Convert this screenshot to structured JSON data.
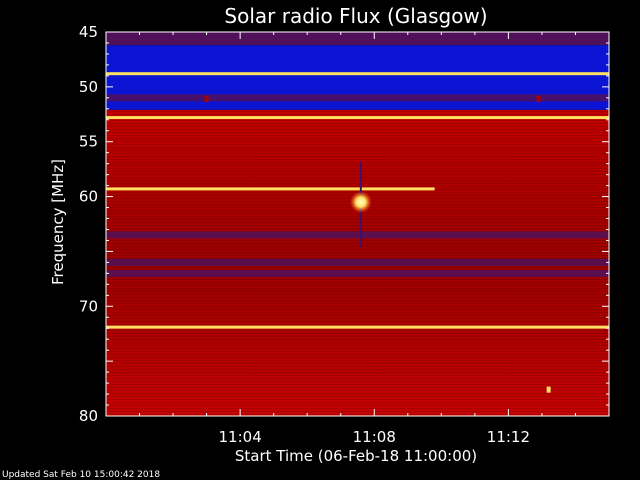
{
  "chart_data": {
    "type": "heatmap",
    "title": "Solar radio Flux (Glasgow)",
    "ylabel": "Frequency [MHz]",
    "xlabel": "Start Time (06-Feb-18 11:00:00)",
    "x_unit": "minutes after 11:00",
    "xlim": [
      0,
      15
    ],
    "ylim": [
      45,
      80
    ],
    "y_ticks": [
      {
        "value": 45,
        "label": "45"
      },
      {
        "value": 50,
        "label": "50"
      },
      {
        "value": 55,
        "label": "55"
      },
      {
        "value": 60,
        "label": "60"
      },
      {
        "value": 70,
        "label": "70"
      },
      {
        "value": 80,
        "label": "80"
      }
    ],
    "x_ticks": [
      {
        "value": 4,
        "label": "11:04"
      },
      {
        "value": 8,
        "label": "11:08"
      },
      {
        "value": 12,
        "label": "11:12"
      }
    ],
    "colors": {
      "background": "#000000",
      "low": "#0a14d2",
      "mid": "#b00000",
      "high": "#ff3010",
      "peak": "#ffe060",
      "dark_band": "#50105a",
      "frame": "#ffffff"
    },
    "regions": [
      {
        "y0": 45,
        "y1": 46.2,
        "level": "dark"
      },
      {
        "y0": 46.2,
        "y1": 52.1,
        "level": "low"
      },
      {
        "y0": 52.1,
        "y1": 80,
        "level": "mid"
      }
    ],
    "horizontal_bands": [
      {
        "y": 48.8,
        "level": "peak",
        "x0": 0,
        "x1": 15
      },
      {
        "y": 51.0,
        "level": "dark",
        "x0": 0,
        "x1": 15
      },
      {
        "y": 52.8,
        "level": "peak",
        "x0": 0,
        "x1": 15
      },
      {
        "y": 59.3,
        "level": "peak",
        "x0": 0,
        "x1": 9.8
      },
      {
        "y": 63.5,
        "level": "dark",
        "x0": 0,
        "x1": 15
      },
      {
        "y": 66.0,
        "level": "dark",
        "x0": 0,
        "x1": 15
      },
      {
        "y": 67.0,
        "level": "dark",
        "x0": 0,
        "x1": 15
      },
      {
        "y": 71.9,
        "level": "peak",
        "x0": 0,
        "x1": 15
      }
    ],
    "point_events": [
      {
        "x": 7.6,
        "y": 60.5,
        "level": "peak",
        "note": "burst"
      },
      {
        "x": 3.0,
        "y": 51.1,
        "level": "mid"
      },
      {
        "x": 12.9,
        "y": 51.1,
        "level": "mid"
      },
      {
        "x": 13.2,
        "y": 77.6,
        "level": "peak"
      }
    ]
  },
  "footer": {
    "updated": "Updated Sat Feb 10 15:00:42 2018"
  }
}
